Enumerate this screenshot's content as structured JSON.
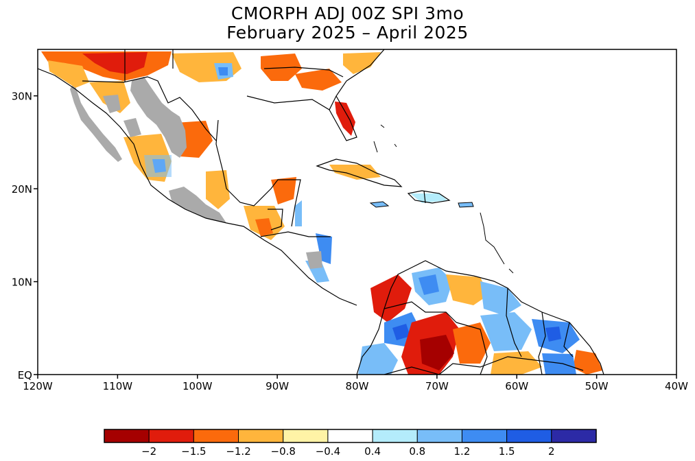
{
  "title": {
    "line1": "CMORPH ADJ 00Z SPI 3mo",
    "line2": "February 2025 – April 2025"
  },
  "map": {
    "lat_ticks": [
      {
        "value": 30,
        "label": "30N"
      },
      {
        "value": 20,
        "label": "20N"
      },
      {
        "value": 10,
        "label": "10N"
      },
      {
        "value": 0,
        "label": "EQ"
      }
    ],
    "lon_ticks": [
      {
        "value": -120,
        "label": "120W"
      },
      {
        "value": -110,
        "label": "110W"
      },
      {
        "value": -100,
        "label": "100W"
      },
      {
        "value": -90,
        "label": "90W"
      },
      {
        "value": -80,
        "label": "80W"
      },
      {
        "value": -70,
        "label": "70W"
      },
      {
        "value": -60,
        "label": "60W"
      },
      {
        "value": -50,
        "label": "50W"
      },
      {
        "value": -40,
        "label": "40W"
      }
    ],
    "lon_range": [
      -120,
      -40
    ],
    "lat_range": [
      0,
      35
    ],
    "no_data_color": "#aaaaaa",
    "coastline_color": "#000000"
  },
  "colorbar": {
    "colors": [
      "#a50000",
      "#e01c0c",
      "#fb6a0c",
      "#ffb53c",
      "#fff3a6",
      "#ffffff",
      "#b4ecfb",
      "#78bdf8",
      "#3e8cf2",
      "#1f5de4",
      "#2c2aa6"
    ],
    "labels": [
      "−2",
      "−1.5",
      "−1.2",
      "−0.8",
      "−0.4",
      "0.4",
      "0.8",
      "1.2",
      "1.5",
      "2"
    ]
  }
}
